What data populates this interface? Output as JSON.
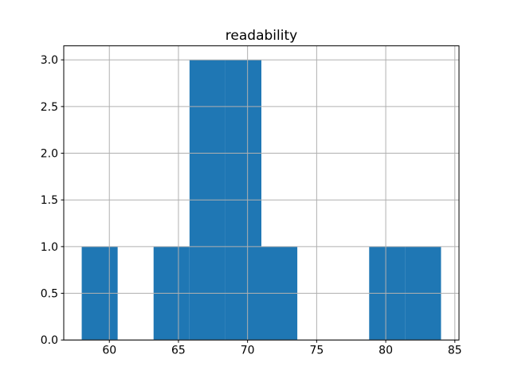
{
  "chart_data": {
    "type": "bar",
    "subtype": "histogram",
    "title": "readability",
    "xlabel": "",
    "ylabel": "",
    "bin_edges": [
      58.0,
      60.6,
      63.2,
      65.8,
      68.4,
      71.0,
      73.6,
      76.2,
      78.8,
      81.4,
      84.0
    ],
    "counts": [
      1,
      0,
      1,
      3,
      3,
      1,
      0,
      0,
      1,
      1
    ],
    "xlim": [
      56.7,
      85.3
    ],
    "ylim": [
      0,
      3.15
    ],
    "xticks": [
      60,
      65,
      70,
      75,
      80,
      85
    ],
    "xticklabels": [
      "60",
      "65",
      "70",
      "75",
      "80",
      "85"
    ],
    "yticks": [
      0,
      0.5,
      1,
      1.5,
      2,
      2.5,
      3
    ],
    "yticklabels": [
      "0.0",
      "0.5",
      "1.0",
      "1.5",
      "2.0",
      "2.5",
      "3.0"
    ],
    "grid": true,
    "grid_above_bars": true,
    "legend": false,
    "colors": {
      "bar": "#1f77b4",
      "grid": "#b0b0b0",
      "spine": "#000000",
      "text": "#000000",
      "background": "#ffffff"
    }
  }
}
